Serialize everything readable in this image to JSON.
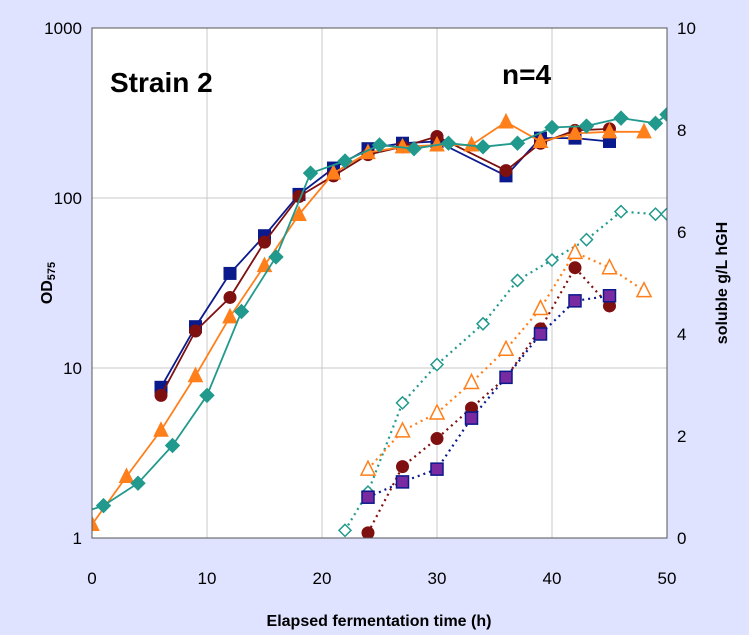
{
  "chart_data": {
    "type": "line",
    "xlabel": "Elapsed fermentation time (h)",
    "ylabel_left": {
      "main": "OD",
      "sub": "575"
    },
    "ylabel_right": "soluble g/L hGH",
    "xlim": [
      0,
      50
    ],
    "ylim_left": [
      1,
      1000
    ],
    "ylim_right": [
      0,
      10
    ],
    "left_scale": "log",
    "x_ticks": [
      "0",
      "10",
      "20",
      "30",
      "40",
      "50"
    ],
    "y_ticks_left": [
      "1",
      "10",
      "100",
      "1000"
    ],
    "y_ticks_right": [
      "0",
      "2",
      "4",
      "6",
      "8",
      "10"
    ],
    "grid": true,
    "annotations": {
      "strain": "Strain 2",
      "n": "n=4"
    },
    "colors": {
      "navy": "#0a1a8c",
      "maroon": "#7f1010",
      "orange": "#ff7f1a",
      "teal": "#21998c",
      "purple": "#7a2aa0",
      "plot_bg": "#ffffff",
      "page_bg": "#dfe3ff",
      "grid": "#c8c8c8"
    },
    "series": [
      {
        "axis": "left",
        "style": "solid",
        "color": "#0a1a8c",
        "marker": "square-filled",
        "x": [
          6,
          9,
          12,
          15,
          18,
          21,
          24,
          27,
          30,
          36,
          39,
          42,
          45
        ],
        "y": [
          7.7,
          17.5,
          36,
          60,
          105,
          150,
          195,
          210,
          215,
          135,
          225,
          225,
          215
        ]
      },
      {
        "axis": "left",
        "style": "solid",
        "color": "#7f1010",
        "marker": "circle-filled",
        "x": [
          6,
          9,
          12,
          15,
          18,
          21,
          24,
          27,
          30,
          36,
          39,
          42,
          45
        ],
        "y": [
          6.9,
          16.5,
          26,
          55,
          102,
          135,
          180,
          200,
          230,
          145,
          210,
          250,
          255
        ]
      },
      {
        "axis": "left",
        "style": "solid",
        "color": "#ff7f1a",
        "marker": "triangle-filled",
        "x": [
          0,
          3,
          6,
          9,
          12,
          15,
          18,
          21,
          24,
          27,
          30,
          33,
          36,
          39,
          42,
          45,
          48
        ],
        "y": [
          1.2,
          2.3,
          4.3,
          9,
          20,
          40,
          80,
          140,
          185,
          200,
          205,
          205,
          280,
          215,
          240,
          245,
          245
        ]
      },
      {
        "axis": "left",
        "style": "solid",
        "color": "#21998c",
        "marker": "diamond-filled",
        "x": [
          -1,
          1,
          4,
          7,
          10,
          13,
          16,
          19,
          22,
          25,
          28,
          31,
          34,
          37,
          40,
          43,
          46,
          49,
          50
        ],
        "y": [
          1.4,
          1.55,
          2.1,
          3.5,
          6.9,
          21.5,
          45,
          140,
          165,
          205,
          195,
          210,
          200,
          210,
          260,
          265,
          295,
          275,
          310
        ]
      },
      {
        "axis": "right",
        "style": "dotted",
        "color": "#21998c",
        "marker": "diamond-open",
        "x": [
          22,
          24,
          27,
          30,
          34,
          37,
          40,
          43,
          46,
          49,
          50
        ],
        "y": [
          0.15,
          0.9,
          2.65,
          3.4,
          4.2,
          5.05,
          5.45,
          5.85,
          6.4,
          6.35,
          6.35
        ]
      },
      {
        "axis": "right",
        "style": "dotted",
        "color": "#ff7f1a",
        "marker": "triangle-open",
        "x": [
          24,
          27,
          30,
          33,
          36,
          39,
          42,
          45,
          48
        ],
        "y": [
          1.35,
          2.1,
          2.45,
          3.05,
          3.7,
          4.5,
          5.6,
          5.3,
          4.85
        ]
      },
      {
        "axis": "right",
        "style": "dotted",
        "color": "#7f1010",
        "marker": "circle-filled",
        "x": [
          24,
          27,
          30,
          33,
          36,
          39,
          42,
          45
        ],
        "y": [
          0.1,
          1.4,
          1.95,
          2.55,
          3.15,
          4.1,
          5.3,
          4.55
        ]
      },
      {
        "axis": "right",
        "style": "dotted",
        "color": "#0a1a8c",
        "marker": "square-purple",
        "x": [
          24,
          27,
          30,
          33,
          36,
          39,
          42,
          45
        ],
        "y": [
          0.8,
          1.1,
          1.35,
          2.35,
          3.15,
          4.0,
          4.65,
          4.75
        ]
      }
    ]
  }
}
